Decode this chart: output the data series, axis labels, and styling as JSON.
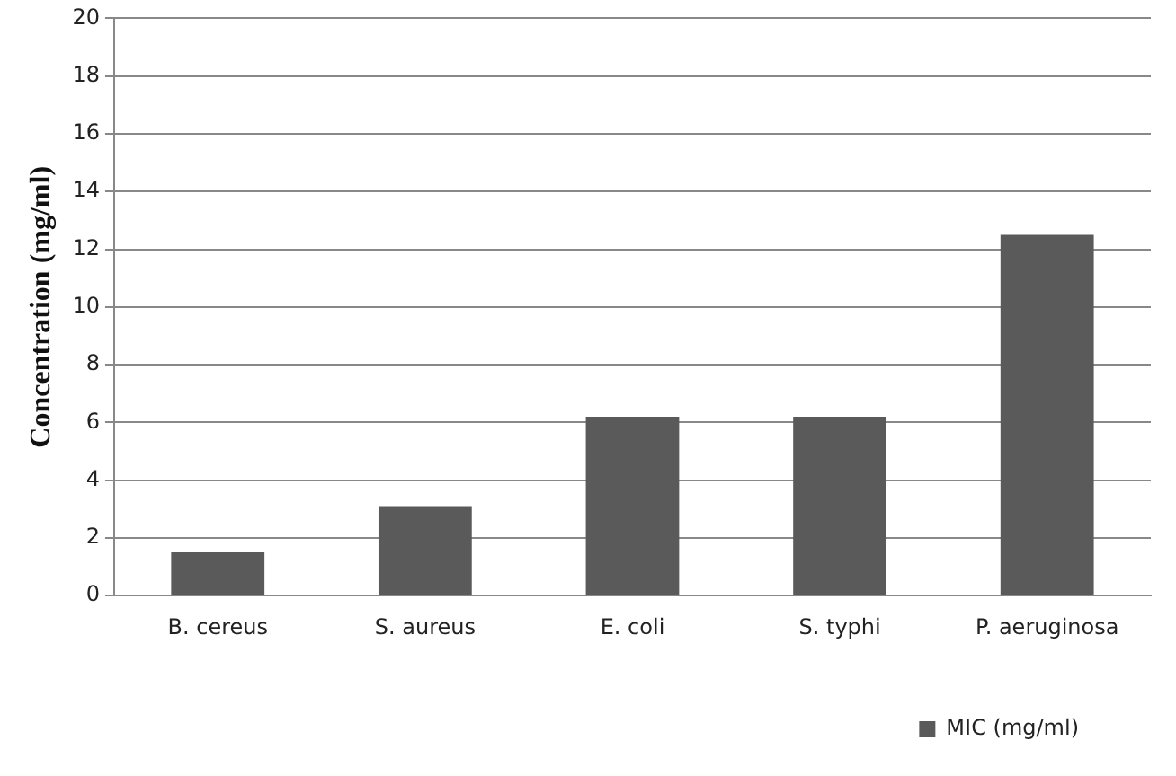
{
  "chart_data": {
    "type": "bar",
    "ylabel": "Concentration (mg/ml)",
    "categories": [
      "B. cereus",
      "S. aureus",
      "E. coli",
      "S. typhi",
      "P. aeruginosa"
    ],
    "series": [
      {
        "name": "MIC (mg/ml)",
        "color": "#5a5a5a",
        "values": [
          1.5,
          3.1,
          6.2,
          6.2,
          12.5
        ]
      }
    ],
    "ylim": [
      0,
      20
    ],
    "yticks": [
      0,
      2,
      4,
      6,
      8,
      10,
      12,
      14,
      16,
      18,
      20
    ],
    "grid": "y",
    "legend": "bottom right"
  }
}
